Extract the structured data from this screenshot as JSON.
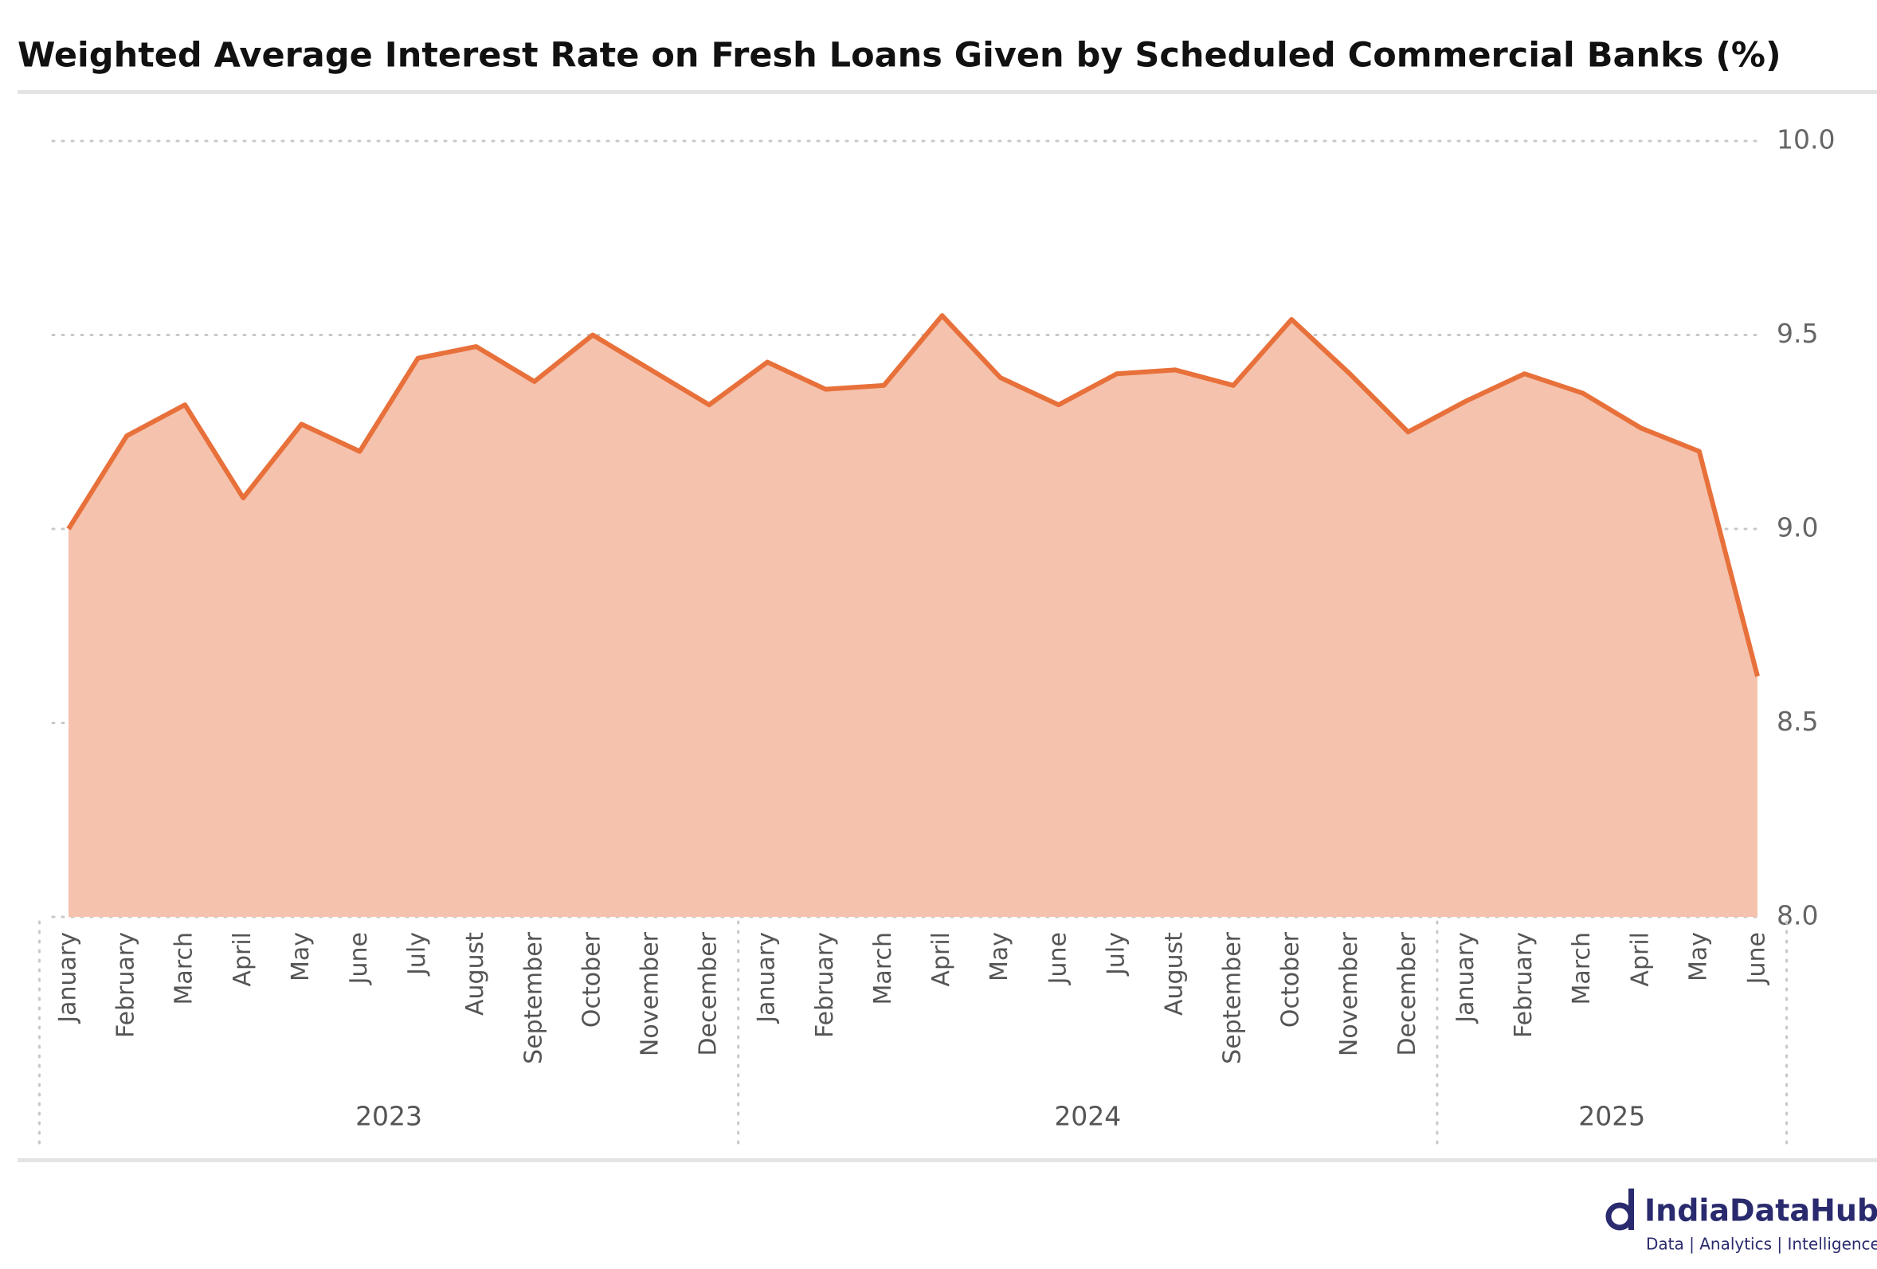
{
  "chart_data": {
    "type": "area",
    "title": "Weighted Average Interest Rate on Fresh Loans Given by Scheduled Commercial Banks (%)",
    "categories": [
      "January",
      "February",
      "March",
      "April",
      "May",
      "June",
      "July",
      "August",
      "September",
      "October",
      "November",
      "December",
      "January",
      "February",
      "March",
      "April",
      "May",
      "June",
      "July",
      "August",
      "September",
      "October",
      "November",
      "December",
      "January",
      "February",
      "March",
      "April",
      "May",
      "June"
    ],
    "category_groups": [
      {
        "label": "2023",
        "count": 12
      },
      {
        "label": "2024",
        "count": 12
      },
      {
        "label": "2025",
        "count": 6
      }
    ],
    "series": [
      {
        "color": "#e8703a",
        "fill": "#f4c2ad",
        "values": [
          9.0,
          9.24,
          9.32,
          9.08,
          9.27,
          9.2,
          9.44,
          9.47,
          9.38,
          9.5,
          9.41,
          9.32,
          9.43,
          9.36,
          9.37,
          9.55,
          9.39,
          9.32,
          9.4,
          9.41,
          9.37,
          9.54,
          9.4,
          9.25,
          9.33,
          9.4,
          9.35,
          9.26,
          9.2,
          8.62
        ]
      }
    ],
    "ylim": [
      8,
      10
    ],
    "yticks": [
      {
        "value": 8,
        "label": "8.0"
      },
      8.5,
      {
        "value": 9,
        "label": "9.0"
      },
      9.5,
      {
        "value": 10,
        "label": "10.0"
      }
    ],
    "grid": true
  },
  "branding": {
    "name": "IndiaDataHub",
    "tagline": "Data | Analytics | Intelligence"
  }
}
